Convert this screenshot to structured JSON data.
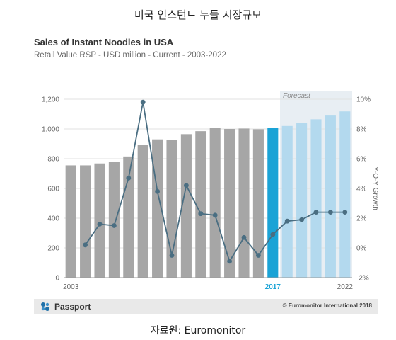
{
  "page": {
    "title": "미국 인스턴트 누들 시장규모",
    "source": "자료원: Euromonitor"
  },
  "footer": {
    "brand": "Passport",
    "copyright": "© Euromonitor International 2018"
  },
  "colors": {
    "bar_historic": "#a6a6a6",
    "bar_current": "#1aa3d6",
    "bar_forecast": "#b3d9ee",
    "forecast_band": "#e8eef3",
    "line": "#4a6e82",
    "axis_text": "#666666",
    "grid": "#e1e1e1"
  },
  "chart_data": {
    "type": "bar",
    "title": "Sales of Instant Noodles in USA",
    "subtitle": "Retail Value RSP - USD million - Current - 2003-2022",
    "forecast_label": "Forecast",
    "categories": [
      "2003",
      "2004",
      "2005",
      "2006",
      "2007",
      "2008",
      "2009",
      "2010",
      "2011",
      "2012",
      "2013",
      "2014",
      "2015",
      "2016",
      "2017",
      "2018",
      "2019",
      "2020",
      "2021",
      "2022"
    ],
    "x_tick_labels": [
      {
        "index": 0,
        "label": "2003",
        "highlight": false
      },
      {
        "index": 14,
        "label": "2017",
        "highlight": true
      },
      {
        "index": 19,
        "label": "2022",
        "highlight": false
      }
    ],
    "forecast_start_index": 15,
    "current_index": 14,
    "series": [
      {
        "type": "bar",
        "values": [
          755,
          755,
          768,
          780,
          815,
          895,
          930,
          925,
          965,
          985,
          1005,
          1000,
          1003,
          998,
          1005,
          1020,
          1040,
          1065,
          1090,
          1118
        ]
      },
      {
        "type": "line",
        "axis": "right",
        "values": [
          null,
          0.2,
          1.6,
          1.5,
          4.7,
          9.8,
          3.8,
          -0.5,
          4.2,
          2.3,
          2.2,
          -0.9,
          0.7,
          -0.5,
          0.9,
          1.8,
          1.9,
          2.4,
          2.4,
          2.4
        ]
      }
    ],
    "left_axis": {
      "ylim": [
        0,
        1200
      ],
      "ticks": [
        0,
        200,
        400,
        600,
        800,
        "1,000",
        "1,200"
      ],
      "tick_values": [
        0,
        200,
        400,
        600,
        800,
        1000,
        1200
      ]
    },
    "right_axis": {
      "label": "Y-O-Y Growth",
      "ylim": [
        -2,
        10
      ],
      "tick_values": [
        -2,
        0,
        2,
        4,
        6,
        8,
        10
      ],
      "ticks": [
        "-2%",
        "0%",
        "2%",
        "4%",
        "6%",
        "8%",
        "10%"
      ]
    },
    "grid": true
  }
}
